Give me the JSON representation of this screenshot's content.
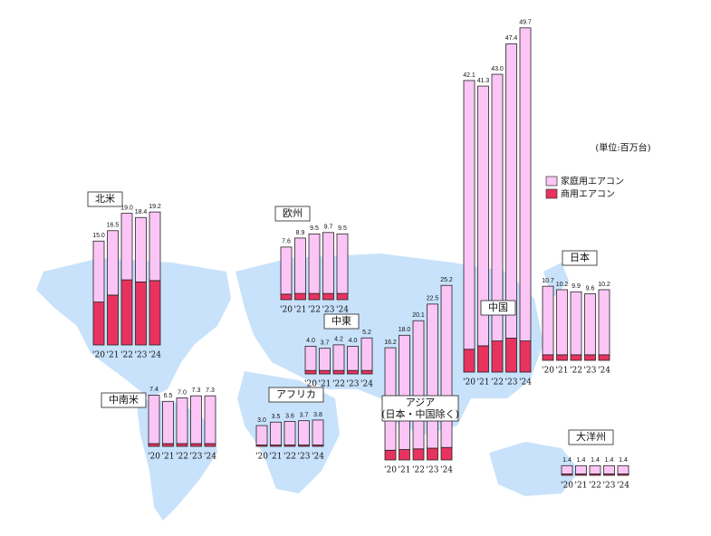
{
  "unit": "(単位:百万台)",
  "chart_data": [
    {
      "type": "bar",
      "stacked": true,
      "title": "北米",
      "categories": [
        "'20",
        "'21",
        "'22",
        "'23",
        "'24"
      ],
      "series": [
        {
          "name": "商用エアコン",
          "color": "#e8335f",
          "values": [
            6.2,
            7.2,
            9.4,
            9.1,
            9.3
          ]
        },
        {
          "name": "家庭用エアコン",
          "color": "#fbc6f6",
          "values": [
            8.8,
            9.3,
            9.6,
            9.3,
            9.9
          ]
        }
      ],
      "totals": [
        15.0,
        16.5,
        19.0,
        18.4,
        19.2
      ],
      "total_labels": [
        "15.0",
        "16.5",
        "19.0",
        "18.4",
        "19.2"
      ]
    },
    {
      "type": "bar",
      "stacked": true,
      "title": "中南米",
      "categories": [
        "'20",
        "'21",
        "'22",
        "'23",
        "'24"
      ],
      "series": [
        {
          "name": "商用エアコン",
          "color": "#e8335f",
          "values": [
            0.4,
            0.4,
            0.4,
            0.4,
            0.4
          ]
        },
        {
          "name": "家庭用エアコン",
          "color": "#fbc6f6",
          "values": [
            7.0,
            6.1,
            6.6,
            6.9,
            6.9
          ]
        }
      ],
      "totals": [
        7.4,
        6.5,
        7.0,
        7.3,
        7.3
      ],
      "total_labels": [
        "7.4",
        "6.5",
        "7.0",
        "7.3",
        "7.3"
      ]
    },
    {
      "type": "bar",
      "stacked": true,
      "title": "欧州",
      "categories": [
        "'20",
        "'21",
        "'22",
        "'23",
        "'24"
      ],
      "series": [
        {
          "name": "商用エアコン",
          "color": "#e8335f",
          "values": [
            0.8,
            0.9,
            0.9,
            0.9,
            0.9
          ]
        },
        {
          "name": "家庭用エアコン",
          "color": "#fbc6f6",
          "values": [
            6.8,
            8.0,
            8.6,
            8.8,
            8.6
          ]
        }
      ],
      "totals": [
        7.6,
        8.9,
        9.5,
        9.7,
        9.5
      ],
      "total_labels": [
        "7.6",
        "8.9",
        "9.5",
        "9.7",
        "9.5"
      ]
    },
    {
      "type": "bar",
      "stacked": true,
      "title": "中東",
      "categories": [
        "'20",
        "'21",
        "'22",
        "'23",
        "'24"
      ],
      "series": [
        {
          "name": "商用エアコン",
          "color": "#e8335f",
          "values": [
            0.5,
            0.5,
            0.5,
            0.5,
            0.5
          ]
        },
        {
          "name": "家庭用エアコン",
          "color": "#fbc6f6",
          "values": [
            3.5,
            3.2,
            3.7,
            3.5,
            4.7
          ]
        }
      ],
      "totals": [
        4.0,
        3.7,
        4.2,
        4.0,
        5.2
      ],
      "total_labels": [
        "4.0",
        "3.7",
        "4.2",
        "4.0",
        "5.2"
      ]
    },
    {
      "type": "bar",
      "stacked": true,
      "title": "アフリカ",
      "categories": [
        "'20",
        "'21",
        "'22",
        "'23",
        "'24"
      ],
      "series": [
        {
          "name": "商用エアコン",
          "color": "#e8335f",
          "values": [
            0.2,
            0.2,
            0.2,
            0.2,
            0.2
          ]
        },
        {
          "name": "家庭用エアコン",
          "color": "#fbc6f6",
          "values": [
            2.8,
            3.3,
            3.4,
            3.5,
            3.6
          ]
        }
      ],
      "totals": [
        3.0,
        3.5,
        3.6,
        3.7,
        3.8
      ],
      "total_labels": [
        "3.0",
        "3.5",
        "3.6",
        "3.7",
        "3.8"
      ]
    },
    {
      "type": "bar",
      "stacked": true,
      "title": "アジア",
      "subtitle": "(日本・中国除く)",
      "categories": [
        "'20",
        "'21",
        "'22",
        "'23",
        "'24"
      ],
      "series": [
        {
          "name": "商用エアコン",
          "color": "#e8335f",
          "values": [
            1.4,
            1.5,
            1.6,
            1.7,
            1.8
          ]
        },
        {
          "name": "家庭用エアコン",
          "color": "#fbc6f6",
          "values": [
            14.8,
            16.5,
            18.5,
            20.8,
            23.4
          ]
        }
      ],
      "totals": [
        16.2,
        18.0,
        20.1,
        22.5,
        25.2
      ],
      "total_labels": [
        "16.2",
        "18.0",
        "20.1",
        "22.5",
        "25.2"
      ]
    },
    {
      "type": "bar",
      "stacked": true,
      "title": "中国",
      "categories": [
        "'20",
        "'21",
        "'22",
        "'23",
        "'24"
      ],
      "series": [
        {
          "name": "商用エアコン",
          "color": "#e8335f",
          "values": [
            3.3,
            3.8,
            4.5,
            4.9,
            4.5
          ]
        },
        {
          "name": "家庭用エアコン",
          "color": "#fbc6f6",
          "values": [
            38.8,
            37.5,
            38.5,
            42.5,
            45.2
          ]
        }
      ],
      "totals": [
        42.1,
        41.3,
        43.0,
        47.4,
        49.7
      ],
      "total_labels": [
        "42.1",
        "41.3",
        "43.0",
        "47.4",
        "49.7"
      ]
    },
    {
      "type": "bar",
      "stacked": true,
      "title": "日本",
      "categories": [
        "'20",
        "'21",
        "'22",
        "'23",
        "'24"
      ],
      "series": [
        {
          "name": "商用エアコン",
          "color": "#e8335f",
          "values": [
            0.8,
            0.8,
            0.8,
            0.8,
            0.8
          ]
        },
        {
          "name": "家庭用エアコン",
          "color": "#fbc6f6",
          "values": [
            9.9,
            9.4,
            9.1,
            8.8,
            9.4
          ]
        }
      ],
      "totals": [
        10.7,
        10.2,
        9.9,
        9.6,
        10.2
      ],
      "total_labels": [
        "10.7",
        "10.2",
        "9.9",
        "9.6",
        "10.2"
      ]
    },
    {
      "type": "bar",
      "stacked": true,
      "title": "大洋州",
      "categories": [
        "'20",
        "'21",
        "'22",
        "'23",
        "'24"
      ],
      "series": [
        {
          "name": "商用エアコン",
          "color": "#e8335f",
          "values": [
            0.2,
            0.2,
            0.2,
            0.2,
            0.2
          ]
        },
        {
          "name": "家庭用エアコン",
          "color": "#fbc6f6",
          "values": [
            1.2,
            1.2,
            1.2,
            1.2,
            1.2
          ]
        }
      ],
      "totals": [
        1.4,
        1.4,
        1.4,
        1.4,
        1.4
      ],
      "total_labels": [
        "1.4",
        "1.4",
        "1.4",
        "1.4",
        "1.4"
      ]
    }
  ]
}
